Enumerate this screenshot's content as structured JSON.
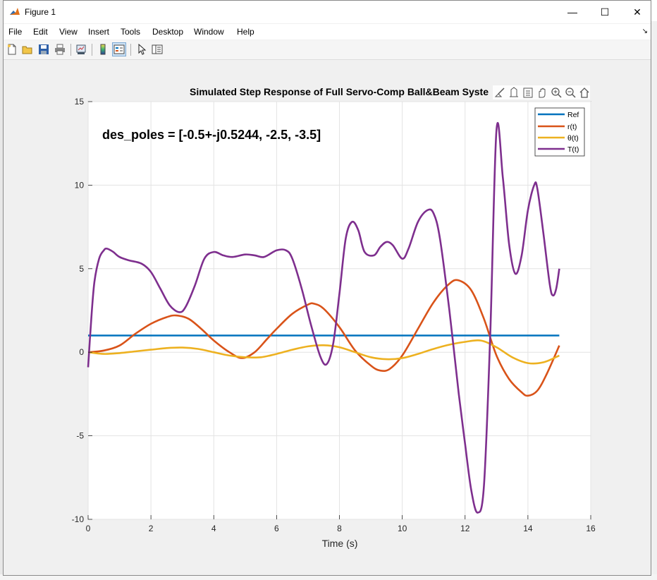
{
  "window": {
    "title": "Figure 1",
    "controls": {
      "minimize": "—",
      "maximize": "☐",
      "close": "✕"
    }
  },
  "menu": {
    "items": [
      "File",
      "Edit",
      "View",
      "Insert",
      "Tools",
      "Desktop",
      "Window",
      "Help"
    ],
    "overflow_icon": "arrow-icon"
  },
  "toolbar": {
    "buttons": [
      "new-figure-icon",
      "open-file-icon",
      "save-icon",
      "print-icon",
      "link-plot-icon",
      "colorbar-icon",
      "legend-icon",
      "edit-plot-icon",
      "property-inspector-icon"
    ]
  },
  "axes_toolbar": {
    "buttons": [
      "brush-icon",
      "data-tips-icon",
      "export-icon",
      "pan-icon",
      "zoom-in-icon",
      "zoom-out-icon",
      "home-icon"
    ]
  },
  "chart_data": {
    "type": "line",
    "title": "Simulated Step Response of Full Servo-Comp Ball&Beam Syste",
    "xlabel": "Time (s)",
    "ylabel": "",
    "xlim": [
      0,
      16
    ],
    "ylim": [
      -10,
      15
    ],
    "xticks": [
      "0",
      "2",
      "4",
      "6",
      "8",
      "10",
      "12",
      "14",
      "16"
    ],
    "yticks": [
      "15",
      "10",
      "5",
      "0",
      "-5",
      "-10"
    ],
    "grid": true,
    "legend_placement": "top-right",
    "annotation": "des_poles = [-0.5+-j0.5244, -2.5, -3.5]",
    "series": [
      {
        "name": "Ref",
        "color": "#0072BD",
        "x": [
          0,
          15
        ],
        "y": [
          1,
          1
        ]
      },
      {
        "name": "r(t)",
        "color": "#D95319",
        "x": [
          0,
          0.5,
          1,
          1.5,
          2,
          2.5,
          2.8,
          3.2,
          3.6,
          4,
          4.5,
          4.9,
          5.3,
          5.7,
          6,
          6.5,
          7,
          7.2,
          7.5,
          8,
          8.5,
          9,
          9.3,
          9.6,
          10,
          10.5,
          11,
          11.5,
          11.8,
          12.2,
          12.6,
          13,
          13.4,
          13.8,
          14,
          14.3,
          14.6,
          15
        ],
        "y": [
          0,
          0.1,
          0.4,
          1.1,
          1.7,
          2.1,
          2.2,
          2,
          1.4,
          0.7,
          0,
          -0.35,
          0,
          0.8,
          1.4,
          2.3,
          2.85,
          2.9,
          2.6,
          1.5,
          0.1,
          -0.8,
          -1.1,
          -1.0,
          -0.2,
          1.4,
          3.0,
          4.1,
          4.3,
          3.7,
          2.0,
          -0.2,
          -1.6,
          -2.4,
          -2.6,
          -2.3,
          -1.3,
          0.4
        ]
      },
      {
        "name": "θ(t)",
        "color": "#EDB120",
        "x": [
          0,
          0.5,
          1,
          1.5,
          2,
          2.5,
          3,
          3.5,
          4,
          4.5,
          5,
          5.5,
          6,
          6.5,
          7,
          7.5,
          8,
          8.5,
          9,
          9.5,
          10,
          10.5,
          11,
          11.5,
          12,
          12.5,
          13,
          13.5,
          14,
          14.5,
          15
        ],
        "y": [
          0,
          -0.1,
          -0.05,
          0.05,
          0.15,
          0.25,
          0.28,
          0.2,
          0.0,
          -0.2,
          -0.3,
          -0.3,
          -0.1,
          0.15,
          0.35,
          0.42,
          0.3,
          0.0,
          -0.3,
          -0.42,
          -0.35,
          -0.1,
          0.2,
          0.45,
          0.62,
          0.7,
          0.3,
          -0.3,
          -0.65,
          -0.6,
          -0.2
        ]
      },
      {
        "name": "T(t)",
        "color": "#7E2F8E",
        "x": [
          0,
          0.1,
          0.2,
          0.35,
          0.5,
          0.6,
          0.8,
          1.0,
          1.3,
          1.7,
          2.0,
          2.3,
          2.6,
          2.9,
          3.1,
          3.4,
          3.7,
          4.0,
          4.3,
          4.6,
          5.0,
          5.3,
          5.6,
          6.0,
          6.3,
          6.5,
          6.8,
          7.1,
          7.4,
          7.6,
          7.8,
          8.0,
          8.2,
          8.4,
          8.6,
          8.8,
          9.1,
          9.3,
          9.5,
          9.7,
          10.0,
          10.2,
          10.5,
          10.8,
          11.0,
          11.2,
          11.5,
          11.8,
          12.0,
          12.2,
          12.4,
          12.6,
          12.8,
          13.0,
          13.2,
          13.4,
          13.6,
          13.8,
          14.0,
          14.2,
          14.3,
          14.5,
          14.7,
          14.8,
          14.9,
          15.0
        ],
        "y": [
          -0.9,
          2.0,
          4.2,
          5.6,
          6.1,
          6.2,
          6.0,
          5.7,
          5.5,
          5.3,
          4.8,
          3.8,
          2.8,
          2.4,
          2.7,
          4.0,
          5.6,
          6.0,
          5.8,
          5.7,
          5.85,
          5.8,
          5.7,
          6.1,
          6.1,
          5.6,
          3.8,
          1.6,
          -0.3,
          -0.7,
          0.5,
          3.5,
          6.8,
          7.8,
          7.3,
          6.0,
          5.8,
          6.3,
          6.6,
          6.4,
          5.6,
          6.2,
          7.8,
          8.5,
          8.3,
          6.8,
          2.5,
          -2.5,
          -5.5,
          -8.3,
          -9.6,
          -8.0,
          1.0,
          13.3,
          10.5,
          6.5,
          4.7,
          5.8,
          8.5,
          10.0,
          9.8,
          7.0,
          4.0,
          3.4,
          3.8,
          5.0
        ]
      }
    ]
  }
}
